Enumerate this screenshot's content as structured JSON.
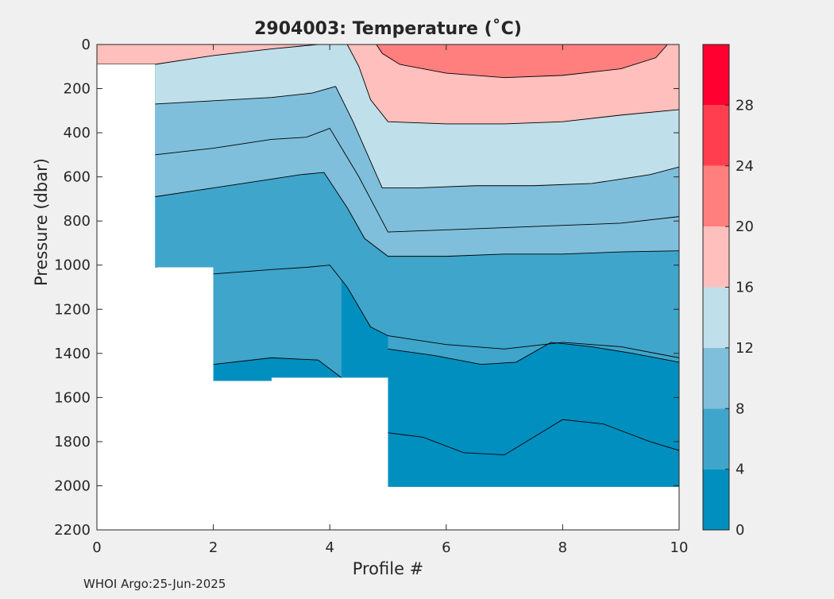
{
  "figure": {
    "title": "2904003:  Temperature (˚C)",
    "xlabel": "Profile #",
    "ylabel": "Pressure (dbar)",
    "credit": "WHOI Argo:25-Jun-2025"
  },
  "colors": {
    "figure_bg": "#f0f0f0",
    "plot_bg": "#ffffff",
    "axis": "#262626",
    "contour_line": "#000000",
    "bands": [
      "#008fbf",
      "#3fa5cb",
      "#7fbfdb",
      "#bfdfea",
      "#ffbfbc",
      "#ff7f7f",
      "#ff3f4f",
      "#ff0030"
    ]
  },
  "chart_data": {
    "type": "filled-contour",
    "title": "2904003:  Temperature (˚C)",
    "xlabel": "Profile #",
    "ylabel": "Pressure (dbar)",
    "xlim": [
      0,
      10
    ],
    "ylim": [
      0,
      2200
    ],
    "y_reversed": true,
    "xticks": [
      0,
      2,
      4,
      6,
      8,
      10
    ],
    "yticks": [
      0,
      200,
      400,
      600,
      800,
      1000,
      1200,
      1400,
      1600,
      1800,
      2000,
      2200
    ],
    "colorbar": {
      "range": [
        0,
        32
      ],
      "ticks": [
        0,
        4,
        8,
        12,
        16,
        20,
        24,
        28
      ],
      "level_step": 4
    },
    "max_pressure_per_profile": [
      {
        "x": [
          0,
          1
        ],
        "max_pressure": 90
      },
      {
        "x": [
          1,
          2
        ],
        "max_pressure": 1010
      },
      {
        "x": [
          2,
          3
        ],
        "max_pressure": 1525
      },
      {
        "x": [
          3,
          5
        ],
        "max_pressure": 1510
      },
      {
        "x": [
          5,
          10
        ],
        "max_pressure": 2005
      }
    ],
    "isotherms": [
      {
        "level": 20,
        "points": [
          [
            4.8,
            0
          ],
          [
            4.9,
            40
          ],
          [
            5.2,
            90
          ],
          [
            6,
            130
          ],
          [
            7,
            150
          ],
          [
            8,
            140
          ],
          [
            9,
            110
          ],
          [
            9.6,
            60
          ],
          [
            9.8,
            0
          ]
        ]
      },
      {
        "level": 16,
        "points": [
          [
            0,
            90
          ],
          [
            1,
            90
          ],
          [
            2,
            50
          ],
          [
            3,
            20
          ],
          [
            3.8,
            0
          ],
          [
            3.85,
            0
          ],
          [
            4.3,
            0
          ],
          [
            4.5,
            100
          ],
          [
            4.7,
            250
          ],
          [
            5,
            350
          ],
          [
            6,
            360
          ],
          [
            7,
            360
          ],
          [
            8,
            350
          ],
          [
            9,
            320
          ],
          [
            10,
            295
          ]
        ]
      },
      {
        "level": 12,
        "points": [
          [
            1,
            270
          ],
          [
            2,
            255
          ],
          [
            3,
            240
          ],
          [
            3.7,
            220
          ],
          [
            4.1,
            190
          ],
          [
            4.4,
            350
          ],
          [
            4.9,
            650
          ],
          [
            5.5,
            650
          ],
          [
            6.5,
            640
          ],
          [
            7.5,
            640
          ],
          [
            8.5,
            630
          ],
          [
            9.5,
            590
          ],
          [
            10,
            555
          ]
        ]
      },
      {
        "level": 10,
        "points": [
          [
            1,
            500
          ],
          [
            2,
            470
          ],
          [
            3,
            430
          ],
          [
            3.6,
            420
          ],
          [
            4,
            380
          ],
          [
            4.5,
            600
          ],
          [
            5,
            850
          ],
          [
            6,
            840
          ],
          [
            7,
            830
          ],
          [
            8,
            820
          ],
          [
            9,
            810
          ],
          [
            10,
            780
          ]
        ]
      },
      {
        "level": 8,
        "points": [
          [
            1,
            690
          ],
          [
            2,
            650
          ],
          [
            3,
            610
          ],
          [
            3.5,
            590
          ],
          [
            3.9,
            580
          ],
          [
            4.3,
            740
          ],
          [
            4.6,
            880
          ],
          [
            5,
            960
          ],
          [
            6,
            960
          ],
          [
            7,
            950
          ],
          [
            8,
            950
          ],
          [
            9,
            940
          ],
          [
            10,
            935
          ]
        ]
      },
      {
        "level": 6,
        "points": [
          [
            1,
            1010
          ],
          [
            2,
            1040
          ],
          [
            3,
            1020
          ],
          [
            3.6,
            1010
          ],
          [
            4,
            1000
          ],
          [
            4.3,
            1100
          ],
          [
            4.7,
            1280
          ],
          [
            5,
            1320
          ],
          [
            6,
            1360
          ],
          [
            7,
            1380
          ],
          [
            8,
            1350
          ],
          [
            9,
            1370
          ],
          [
            10,
            1420
          ]
        ]
      },
      {
        "level": 4,
        "points": [
          [
            2,
            1450
          ],
          [
            3,
            1420
          ],
          [
            3.8,
            1430
          ],
          [
            4.2,
            1510
          ]
        ]
      },
      {
        "level": 4,
        "points": [
          [
            5,
            1380
          ],
          [
            5.8,
            1410
          ],
          [
            6.6,
            1450
          ],
          [
            7.2,
            1440
          ],
          [
            7.8,
            1350
          ],
          [
            8.5,
            1370
          ],
          [
            9.2,
            1400
          ],
          [
            10,
            1440
          ]
        ]
      },
      {
        "level": 3,
        "points": [
          [
            5,
            1760
          ],
          [
            5.6,
            1780
          ],
          [
            6.3,
            1850
          ],
          [
            7,
            1860
          ],
          [
            7.5,
            1780
          ],
          [
            8,
            1700
          ],
          [
            8.7,
            1720
          ],
          [
            9.5,
            1800
          ],
          [
            10,
            1840
          ]
        ]
      }
    ]
  }
}
